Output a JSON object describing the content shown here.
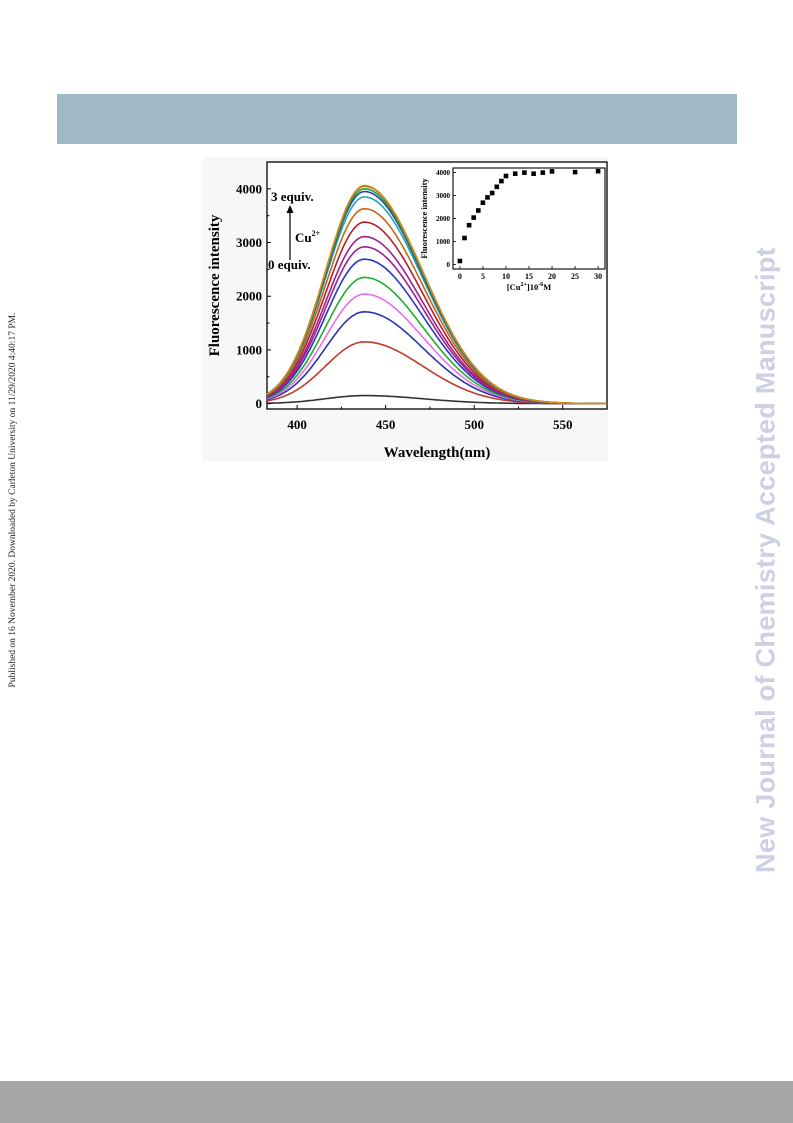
{
  "side_note": "Published on 16 November 2020. Downloaded by Carleton University on 11/29/2020 4:40:17 PM.",
  "watermark": "New Journal of Chemistry Accepted Manuscript",
  "colors": {
    "header_band": "#9fb9c6",
    "footer_band": "#a6a6a6",
    "watermark": "#cdd0e3"
  },
  "chart_data": [
    {
      "type": "line",
      "title": "",
      "xlabel": "Wavelength(nm)",
      "ylabel": "Fluorescence intensity",
      "xlim": [
        383,
        575
      ],
      "ylim": [
        -100,
        4500
      ],
      "xticks": [
        400,
        450,
        500,
        550
      ],
      "yticks": [
        0,
        1000,
        2000,
        3000,
        4000
      ],
      "peak_wavelength": 438,
      "grid": false,
      "annotations": {
        "top": "3 equiv.",
        "bottom": "0 equiv.",
        "ion_base": "Cu",
        "ion_sup": "2+"
      },
      "series": [
        {
          "color": "#333333",
          "peak": 150
        },
        {
          "color": "#c0392b",
          "peak": 1150
        },
        {
          "color": "#2b33b0",
          "peak": 1710
        },
        {
          "color": "#ee6cf0",
          "peak": 2040
        },
        {
          "color": "#1fae2a",
          "peak": 2350
        },
        {
          "color": "#2438c4",
          "peak": 2690
        },
        {
          "color": "#a0208e",
          "peak": 2920
        },
        {
          "color": "#a0208e",
          "peak": 3110
        },
        {
          "color": "#b3202a",
          "peak": 3380
        },
        {
          "color": "#c8651a",
          "peak": 3630
        },
        {
          "color": "#20a6b3",
          "peak": 3850
        },
        {
          "color": "#2b3fb8",
          "peak": 3950
        },
        {
          "color": "#22a52a",
          "peak": 4000
        },
        {
          "color": "#8a5a1e",
          "peak": 4050
        },
        {
          "color": "#d68a1c",
          "peak": 4060
        }
      ]
    },
    {
      "type": "scatter",
      "title": "",
      "xlabel_base": "[Cu",
      "xlabel_sup": "2+",
      "xlabel_mid": "]10",
      "xlabel_sup2": "-6",
      "xlabel_end": "M",
      "ylabel": "Fluorescence intensity",
      "xlim": [
        -1.5,
        31.5
      ],
      "ylim": [
        -200,
        4200
      ],
      "xticks": [
        0,
        5,
        10,
        15,
        20,
        25,
        30
      ],
      "yticks": [
        0,
        1000,
        2000,
        3000,
        4000
      ],
      "x": [
        0,
        1,
        2,
        3,
        4,
        5,
        6,
        7,
        8,
        9,
        10,
        12,
        14,
        16,
        18,
        20,
        25,
        30
      ],
      "y": [
        150,
        1150,
        1710,
        2040,
        2350,
        2690,
        2920,
        3110,
        3380,
        3630,
        3850,
        3950,
        4000,
        3950,
        4000,
        4050,
        4020,
        4060
      ]
    }
  ]
}
